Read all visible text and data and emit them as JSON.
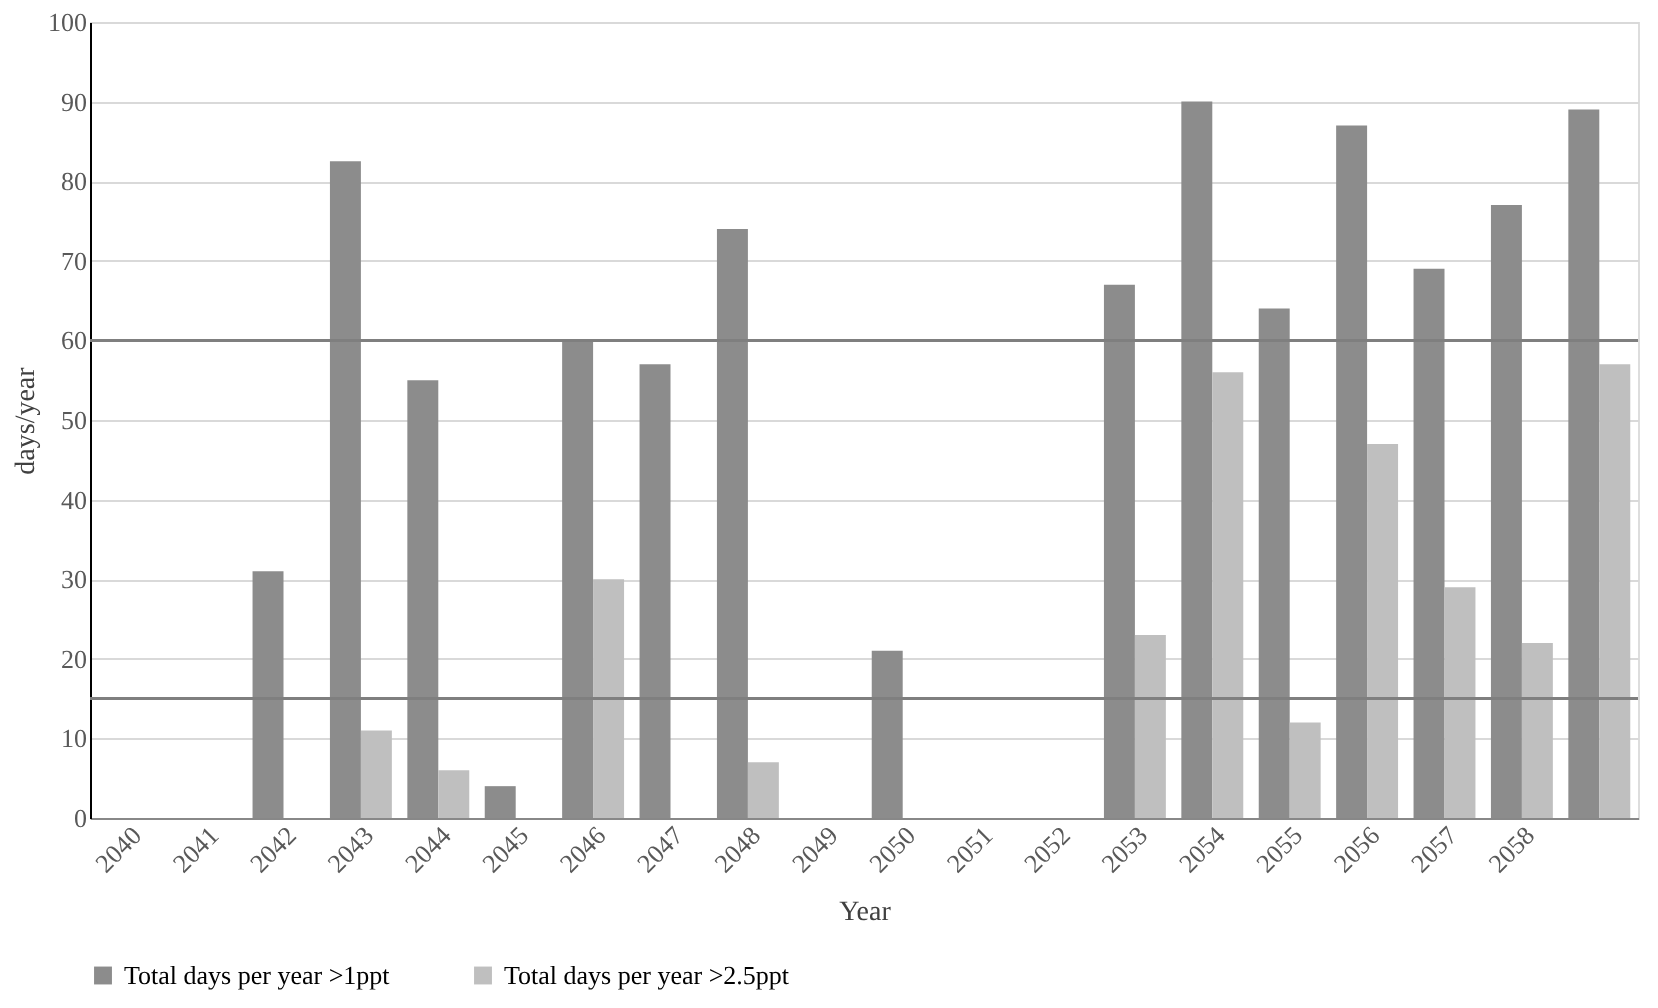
{
  "chart_data": {
    "type": "bar",
    "xlabel": "Year",
    "ylabel": "days/year",
    "categories": [
      "2040",
      "2041",
      "2042",
      "2043",
      "2044",
      "2045",
      "2046",
      "2047",
      "2048",
      "2049",
      "2050",
      "2051",
      "2052",
      "2053",
      "2054",
      "2055",
      "2056",
      "2057",
      "2058",
      null
    ],
    "series": [
      {
        "name": "Total days per year >1ppt",
        "color": "#8c8c8c",
        "values": [
          0,
          0,
          31,
          82.5,
          55,
          4,
          60,
          57,
          74,
          0,
          21,
          0,
          0,
          67,
          90,
          64,
          87,
          69,
          77,
          89
        ]
      },
      {
        "name": "Total days per year >2.5ppt",
        "color": "#bfbfbf",
        "values": [
          0,
          0,
          0,
          11,
          6,
          0,
          30,
          0,
          7,
          0,
          0,
          0,
          0,
          23,
          56,
          12,
          47,
          29,
          22,
          57
        ]
      }
    ],
    "ylim": [
      0,
      100
    ],
    "yticks": [
      0,
      10,
      20,
      30,
      40,
      50,
      60,
      70,
      80,
      90,
      100
    ],
    "grid": "y",
    "legend": "bottom",
    "ref_lines": [
      {
        "axis": "y",
        "value": 60,
        "color": "#7f7f7f"
      },
      {
        "axis": "y",
        "value": 15,
        "color": "#7f7f7f"
      }
    ]
  }
}
